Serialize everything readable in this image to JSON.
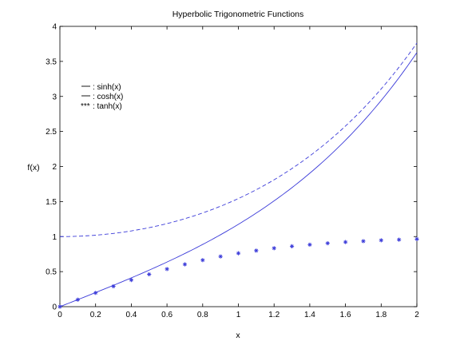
{
  "chart_data": {
    "type": "line",
    "title": "Hyperbolic Trigonometric Functions",
    "xlabel": "x",
    "ylabel": "f(x)",
    "xlim": [
      0,
      2
    ],
    "ylim": [
      0,
      4
    ],
    "xticks": [
      "0",
      "0.2",
      "0.4",
      "0.6",
      "0.8",
      "1",
      "1.2",
      "1.4",
      "1.6",
      "1.8",
      "2"
    ],
    "yticks": [
      "0",
      "0.5",
      "1",
      "1.5",
      "2",
      "2.5",
      "3",
      "3.5",
      "4"
    ],
    "grid": false,
    "legend_position": "upper-left",
    "legend": [
      {
        "label": ": sinh(x)",
        "symbol": "solid"
      },
      {
        "label": ": cosh(x)",
        "symbol": "solid"
      },
      {
        "label": ": tanh(x)",
        "symbol": "***"
      }
    ],
    "series_color": "#3b3bd9",
    "series": [
      {
        "style": "solid",
        "x": [
          0,
          0.2,
          0.4,
          0.6,
          0.8,
          1.0,
          1.2,
          1.4,
          1.6,
          1.8,
          2.0
        ],
        "y": [
          0,
          0.201,
          0.411,
          0.637,
          0.888,
          1.175,
          1.509,
          1.904,
          2.376,
          2.942,
          3.627
        ]
      },
      {
        "style": "dashed",
        "x": [
          0,
          0.2,
          0.4,
          0.6,
          0.8,
          1.0,
          1.2,
          1.4,
          1.6,
          1.8,
          2.0
        ],
        "y": [
          1.0,
          1.02,
          1.081,
          1.185,
          1.337,
          1.543,
          1.811,
          2.151,
          2.577,
          3.107,
          3.762
        ]
      },
      {
        "style": "markers",
        "marker": "*",
        "x": [
          0,
          0.1,
          0.2,
          0.3,
          0.4,
          0.5,
          0.6,
          0.7,
          0.8,
          0.9,
          1.0,
          1.1,
          1.2,
          1.3,
          1.4,
          1.5,
          1.6,
          1.7,
          1.8,
          1.9,
          2.0
        ],
        "y": [
          0,
          0.1,
          0.197,
          0.291,
          0.38,
          0.462,
          0.537,
          0.604,
          0.664,
          0.716,
          0.762,
          0.8,
          0.834,
          0.862,
          0.885,
          0.905,
          0.922,
          0.935,
          0.947,
          0.956,
          0.964
        ]
      }
    ]
  }
}
